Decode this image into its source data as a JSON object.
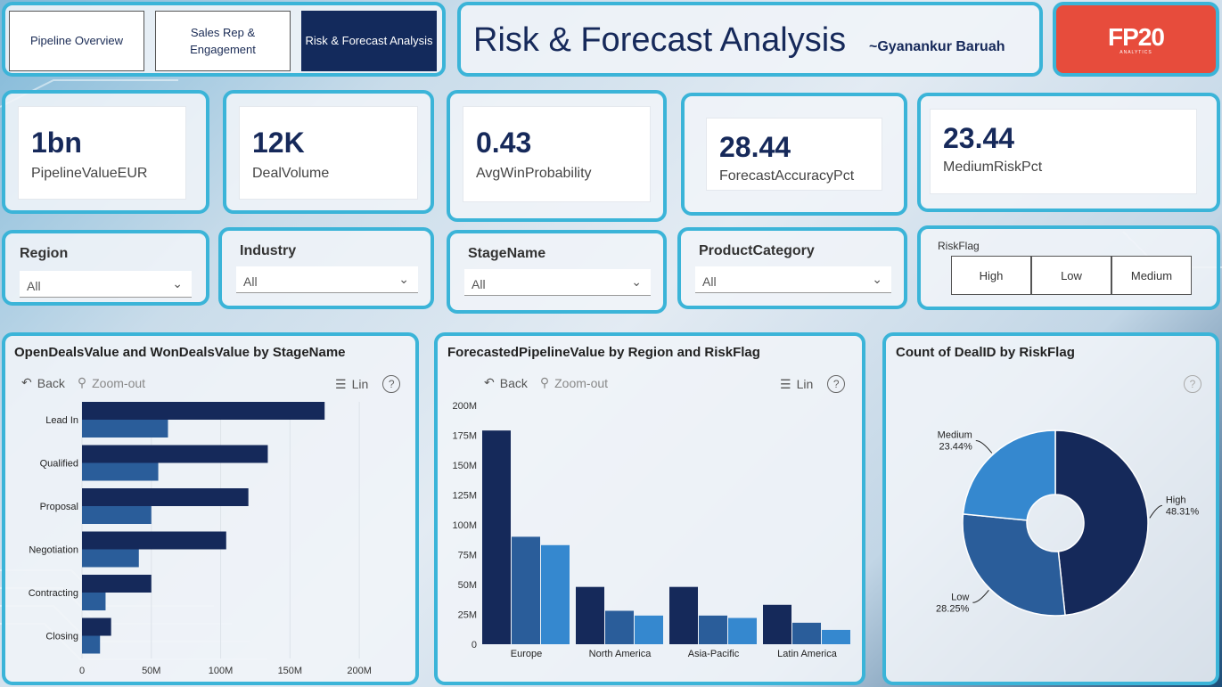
{
  "nav": {
    "tabs": [
      {
        "label": "Pipeline Overview",
        "active": false
      },
      {
        "label": "Sales Rep & Engagement",
        "active": false
      },
      {
        "label": "Risk & Forecast Analysis",
        "active": true
      }
    ]
  },
  "header": {
    "title": "Risk & Forecast Analysis",
    "author": "~Gyanankur Baruah"
  },
  "logo": {
    "text": "FP20",
    "sub": "ANALYTICS"
  },
  "kpis": [
    {
      "value": "1bn",
      "label": "PipelineValueEUR"
    },
    {
      "value": "12K",
      "label": "DealVolume"
    },
    {
      "value": "0.43",
      "label": "AvgWinProbability"
    },
    {
      "value": "28.44",
      "label": "ForecastAccuracyPct"
    },
    {
      "value": "23.44",
      "label": "MediumRiskPct"
    }
  ],
  "filters": [
    {
      "label": "Region",
      "value": "All"
    },
    {
      "label": "Industry",
      "value": "All"
    },
    {
      "label": "StageName",
      "value": "All"
    },
    {
      "label": "ProductCategory",
      "value": "All"
    }
  ],
  "riskflag_slicer": {
    "title": "RiskFlag",
    "options": [
      "High",
      "Low",
      "Medium"
    ]
  },
  "toolbar": {
    "back": "Back",
    "zoom_out": "Zoom-out",
    "lin": "Lin",
    "help": "?"
  },
  "colors": {
    "dark": "#15295a",
    "mid": "#2a5d9a",
    "light": "#3588cf",
    "accent": "#3bb4d8",
    "logo": "#e74c3c"
  },
  "chart_data": [
    {
      "type": "bar",
      "orientation": "horizontal",
      "title": "OpenDealsValue and WonDealsValue by StageName",
      "categories": [
        "Lead In",
        "Qualified",
        "Proposal",
        "Negotiation",
        "Contracting",
        "Closing"
      ],
      "series": [
        {
          "name": "OpenDealsValue",
          "values": [
            175,
            134,
            120,
            104,
            50,
            21
          ]
        },
        {
          "name": "WonDealsValue",
          "values": [
            62,
            55,
            50,
            41,
            17,
            13
          ]
        }
      ],
      "xticks": [
        "0",
        "50M",
        "100M",
        "150M",
        "200M"
      ],
      "xlim": [
        0,
        225
      ]
    },
    {
      "type": "bar",
      "title": "ForecastedPipelineValue by Region and RiskFlag",
      "categories": [
        "Europe",
        "North America",
        "Asia-Pacific",
        "Latin America"
      ],
      "series": [
        {
          "name": "High",
          "values": [
            179,
            48,
            48,
            33
          ]
        },
        {
          "name": "Low",
          "values": [
            90,
            28,
            24,
            18
          ]
        },
        {
          "name": "Medium",
          "values": [
            83,
            24,
            22,
            12
          ]
        }
      ],
      "yticks": [
        "0",
        "25M",
        "50M",
        "75M",
        "100M",
        "125M",
        "150M",
        "175M",
        "200M"
      ],
      "ylim": [
        0,
        200
      ]
    },
    {
      "type": "pie",
      "title": "Count of DealID by RiskFlag",
      "labels": [
        "High",
        "Low",
        "Medium"
      ],
      "values": [
        48.31,
        28.25,
        23.44
      ],
      "value_labels": [
        "48.31%",
        "28.25%",
        "23.44%"
      ]
    }
  ]
}
